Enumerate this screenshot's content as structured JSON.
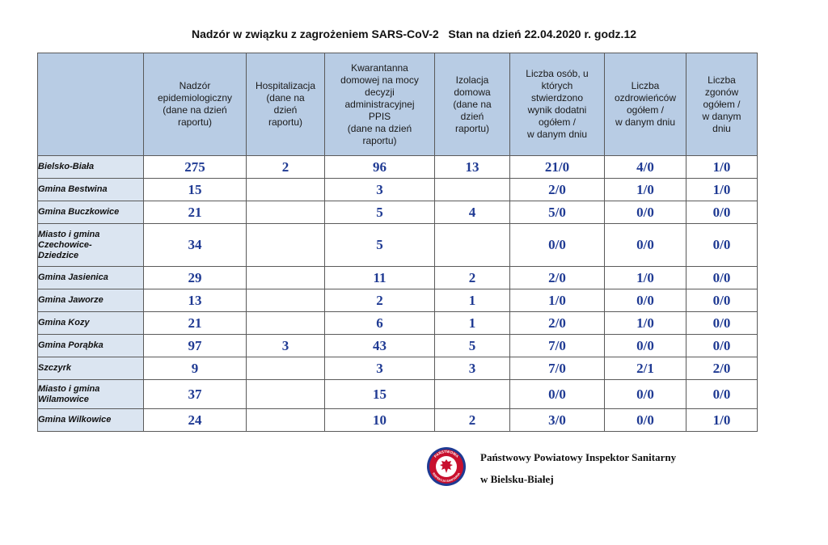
{
  "title": "Nadzór w związku z zagrożeniem SARS-CoV-2   Stan na dzień 22.04.2020 r. godz.12",
  "headers": [
    [
      "Nadzór",
      "epidemiologiczny",
      "(dane na dzień",
      "raportu)"
    ],
    [
      "Hospitalizacja",
      "(dane na",
      "dzień",
      "raportu)"
    ],
    [
      "Kwarantanna",
      "domowej na mocy",
      "decyzji",
      "administracyjnej",
      "PPIS",
      "(dane na dzień",
      "raportu)"
    ],
    [
      "Izolacja",
      "domowa",
      "(dane na",
      "dzień",
      "raportu)"
    ],
    [
      "Liczba osób, u",
      "których",
      "stwierdzono",
      "wynik dodatni",
      "ogółem /",
      "w danym dniu"
    ],
    [
      "Liczba",
      "ozdrowieńców",
      "ogółem /",
      "w danym dniu"
    ],
    [
      "Liczba",
      "zgonów",
      "ogółem /",
      "w danym",
      "dniu"
    ]
  ],
  "rows": [
    {
      "name": [
        "Bielsko-Biała"
      ],
      "values": [
        "275",
        "2",
        "96",
        "13",
        "21/0",
        "4/0",
        "1/0"
      ]
    },
    {
      "name": [
        "Gmina Bestwina"
      ],
      "values": [
        "15",
        "",
        "3",
        "",
        "2/0",
        "1/0",
        "1/0"
      ]
    },
    {
      "name": [
        "Gmina Buczkowice"
      ],
      "values": [
        "21",
        "",
        "5",
        "4",
        "5/0",
        "0/0",
        "0/0"
      ]
    },
    {
      "name": [
        "Miasto i gmina",
        "Czechowice-",
        "Dziedzice"
      ],
      "values": [
        "34",
        "",
        "5",
        "",
        "0/0",
        "0/0",
        "0/0"
      ]
    },
    {
      "name": [
        "Gmina Jasienica"
      ],
      "values": [
        "29",
        "",
        "11",
        "2",
        "2/0",
        "1/0",
        "0/0"
      ]
    },
    {
      "name": [
        "Gmina Jaworze"
      ],
      "values": [
        "13",
        "",
        "2",
        "1",
        "1/0",
        "0/0",
        "0/0"
      ]
    },
    {
      "name": [
        "Gmina Kozy"
      ],
      "values": [
        "21",
        "",
        "6",
        "1",
        "2/0",
        "1/0",
        "0/0"
      ]
    },
    {
      "name": [
        "Gmina Porąbka"
      ],
      "values": [
        "97",
        "3",
        "43",
        "5",
        "7/0",
        "0/0",
        "0/0"
      ]
    },
    {
      "name": [
        "Szczyrk"
      ],
      "values": [
        "9",
        "",
        "3",
        "3",
        "7/0",
        "2/1",
        "2/0"
      ]
    },
    {
      "name": [
        "Miasto i gmina",
        "Wilamowice"
      ],
      "values": [
        "37",
        "",
        "15",
        "",
        "0/0",
        "0/0",
        "0/0"
      ]
    },
    {
      "name": [
        "Gmina Wilkowice"
      ],
      "values": [
        "24",
        "",
        "10",
        "2",
        "3/0",
        "0/0",
        "1/0"
      ]
    }
  ],
  "footer": {
    "line1": "Państwowy Powiatowy Inspektor Sanitarny",
    "line2": "w Bielsku-Białej"
  },
  "stamp": {
    "top_text": "PAŃSTWOWA",
    "bottom_text": "INSPEKCJA SANITARNA",
    "ring_color": "#c8102e",
    "inner_color": "#1f3a93"
  }
}
